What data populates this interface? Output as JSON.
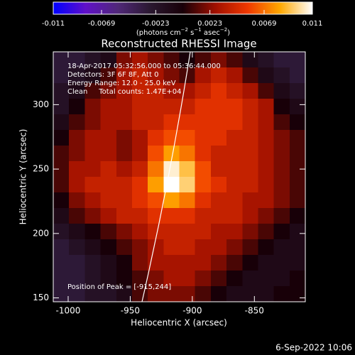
{
  "chart_data": {
    "type": "heatmap",
    "title": "Reconstructed RHESSI Image",
    "colorbar_unit": [
      "(photons cm",
      "−2",
      " s",
      "−1",
      " asec",
      "−2",
      ")"
    ],
    "zlim": [
      -0.011,
      0.011
    ],
    "zticks": [
      -0.011,
      -0.0069,
      -0.0023,
      0.0023,
      0.0069,
      0.011
    ],
    "colorscale": [
      "#0000ff",
      "#6010c8",
      "#502878",
      "#2a1830",
      "#180008",
      "#a01000",
      "#f03800",
      "#ffa800",
      "#ffffff"
    ],
    "x_label": "Heliocentric X (arcsec)",
    "y_label": "Heliocentric Y (arcsec)",
    "xlim": [
      -1012,
      -809
    ],
    "ylim": [
      147,
      341
    ],
    "xticks": [
      -1000,
      -950,
      -900,
      -850
    ],
    "yticks": [
      150,
      200,
      250,
      300
    ],
    "annotations": [
      "18-Apr-2017 05:32:56.000 to 05:36:44.000",
      "Detectors: 3F 6F 8F, Att 0",
      "Energy Range: 12.0 - 25.0 keV",
      "Clean     Total counts: 1.47E+04"
    ],
    "peak_label": "Position of Peak = [-915,244]",
    "date": "6-Sep-2022 10:06",
    "z": [
      [
        -0.003,
        -0.003,
        -0.002,
        -0.001,
        0.002,
        0.003,
        0.002,
        0.001,
        0,
        0.001,
        0.002,
        0.001,
        -0.001,
        -0.002,
        -0.003,
        -0.003
      ],
      [
        -0.003,
        -0.002,
        -0.001,
        0.001,
        0.003,
        0.004,
        0.003,
        0.002,
        0.001,
        0.003,
        0.004,
        0.003,
        0.001,
        -0.001,
        -0.002,
        -0.003
      ],
      [
        -0.002,
        -0.001,
        0.001,
        0.002,
        0.003,
        0.004,
        0.004,
        0.003,
        0.003,
        0.004,
        0.005,
        0.004,
        0.003,
        0.001,
        -0.001,
        -0.002
      ],
      [
        -0.002,
        0,
        0.002,
        0.003,
        0.003,
        0.004,
        0.004,
        0.004,
        0.004,
        0.005,
        0.005,
        0.005,
        0.004,
        0.003,
        0,
        -0.001
      ],
      [
        -0.001,
        0.001,
        0.002,
        0.003,
        0.003,
        0.004,
        0.004,
        0.005,
        0.005,
        0.005,
        0.005,
        0.005,
        0.004,
        0.003,
        0.001,
        0
      ],
      [
        0,
        0.002,
        0.003,
        0.003,
        0.002,
        0.003,
        0.005,
        0.006,
        0.006,
        0.005,
        0.005,
        0.004,
        0.004,
        0.003,
        0.002,
        0.001
      ],
      [
        0.001,
        0.002,
        0.003,
        0.003,
        0.002,
        0.003,
        0.006,
        0.008,
        0.007,
        0.005,
        0.004,
        0.004,
        0.004,
        0.003,
        0.002,
        0.001
      ],
      [
        0.001,
        0.003,
        0.003,
        0.004,
        0.003,
        0.004,
        0.007,
        0.0105,
        0.009,
        0.006,
        0.004,
        0.004,
        0.004,
        0.003,
        0.002,
        0.001
      ],
      [
        0.001,
        0.003,
        0.004,
        0.004,
        0.004,
        0.005,
        0.008,
        0.011,
        0.0095,
        0.006,
        0.005,
        0.004,
        0.004,
        0.003,
        0.002,
        0.001
      ],
      [
        0,
        0.002,
        0.003,
        0.004,
        0.004,
        0.005,
        0.006,
        0.008,
        0.007,
        0.005,
        0.004,
        0.004,
        0.003,
        0.003,
        0.002,
        0.001
      ],
      [
        -0.001,
        0.001,
        0.002,
        0.003,
        0.004,
        0.004,
        0.005,
        0.005,
        0.005,
        0.004,
        0.004,
        0.004,
        0.003,
        0.002,
        0.001,
        0
      ],
      [
        -0.002,
        -0.001,
        0,
        0.001,
        0.002,
        0.003,
        0.004,
        0.004,
        0.004,
        0.004,
        0.003,
        0.003,
        0.002,
        0.001,
        0,
        -0.001
      ],
      [
        -0.003,
        -0.002,
        -0.001,
        0,
        0.001,
        0.002,
        0.003,
        0.004,
        0.004,
        0.003,
        0.003,
        0.002,
        0.001,
        0,
        -0.001,
        -0.001
      ],
      [
        -0.003,
        -0.003,
        -0.002,
        -0.001,
        0,
        0.002,
        0.003,
        0.003,
        0.003,
        0.003,
        0.002,
        0.001,
        0,
        -0.001,
        -0.001,
        -0.001
      ],
      [
        -0.003,
        -0.003,
        -0.002,
        -0.001,
        0,
        0.001,
        0.002,
        0.003,
        0.003,
        0.002,
        0.001,
        0,
        -0.001,
        -0.001,
        -0.001,
        0
      ],
      [
        -0.003,
        -0.003,
        -0.002,
        -0.002,
        -0.001,
        0.001,
        0.002,
        0.002,
        0.002,
        0.001,
        0,
        -0.001,
        -0.001,
        -0.001,
        0,
        0
      ]
    ]
  }
}
